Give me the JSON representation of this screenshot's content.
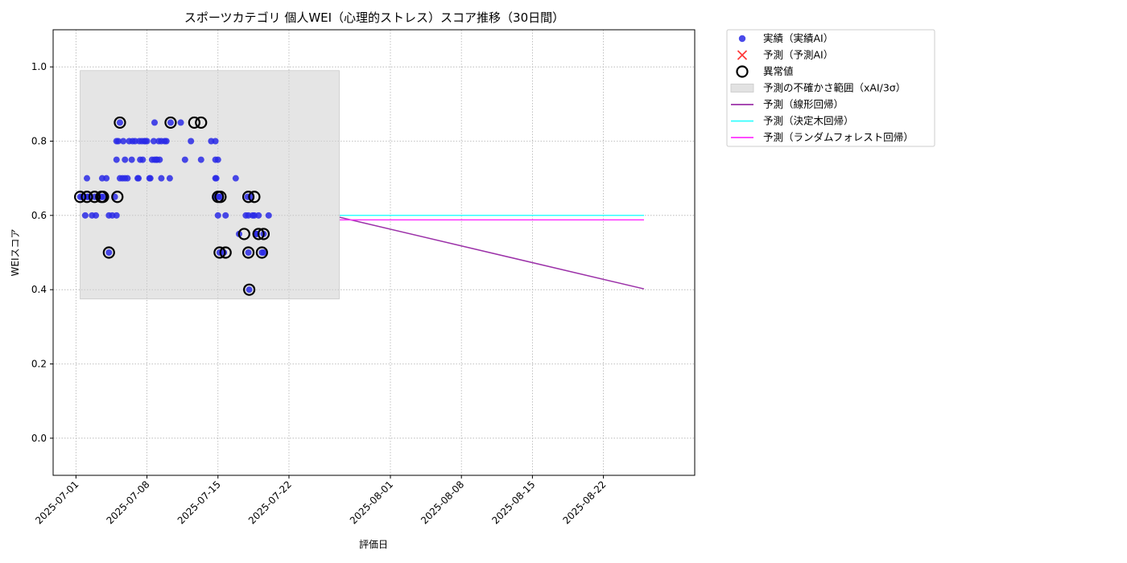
{
  "chart_data": {
    "type": "scatter",
    "title": "スポーツカテゴリ 個人WEI（心理的ストレス）スコア推移（30日間）",
    "xlabel": "評価日",
    "ylabel": "WEIスコア",
    "xlim": [
      "2025-06-28T18:00",
      "2025-08-31"
    ],
    "ylim": [
      -0.1,
      1.1
    ],
    "x_ticks": [
      "2025-07-01",
      "2025-07-08",
      "2025-07-15",
      "2025-07-22",
      "2025-08-01",
      "2025-08-08",
      "2025-08-15",
      "2025-08-22"
    ],
    "y_ticks": [
      0.0,
      0.2,
      0.4,
      0.6,
      0.8,
      1.0
    ],
    "grid": true,
    "legend_placement": "outside-top-right",
    "colors": {
      "actual": "#2a2ae6",
      "predicted_ai": "#ff3b3b",
      "anomaly_edge": "#000000",
      "uncertainty": "#cfcfcf",
      "linear": "#9b30a8",
      "decision_tree": "#33ffff",
      "random_forest": "#ff33ff"
    },
    "legend": [
      {
        "key": "actual",
        "label": "実績（実績AI）"
      },
      {
        "key": "predicted_ai",
        "label": "予測（予測AI）"
      },
      {
        "key": "anomaly",
        "label": "異常値"
      },
      {
        "key": "uncertainty",
        "label": "予測の不確かさ範囲（xAI/3σ）"
      },
      {
        "key": "linear",
        "label": "予測（線形回帰）"
      },
      {
        "key": "decision_tree",
        "label": "予測（決定木回帰）"
      },
      {
        "key": "random_forest",
        "label": "予測（ランダムフォレスト回帰）"
      }
    ],
    "uncertainty_band": {
      "x": [
        "2025-07-01T10:00",
        "2025-07-26T23:00"
      ],
      "y": [
        0.375,
        0.99
      ]
    },
    "series": [
      {
        "name": "実績（実績AI）",
        "points": [
          [
            "2025-07-01T10:00",
            0.65
          ],
          [
            "2025-07-01T14:00",
            0.65
          ],
          [
            "2025-07-01T22:00",
            0.6
          ],
          [
            "2025-07-02T02:00",
            0.65
          ],
          [
            "2025-07-02T06:00",
            0.65
          ],
          [
            "2025-07-02T02:00",
            0.7
          ],
          [
            "2025-07-02T14:00",
            0.6
          ],
          [
            "2025-07-02T20:00",
            0.65
          ],
          [
            "2025-07-02T23:00",
            0.6
          ],
          [
            "2025-07-03T06:00",
            0.65
          ],
          [
            "2025-07-03T12:00",
            0.65
          ],
          [
            "2025-07-03T14:00",
            0.7
          ],
          [
            "2025-07-03T16:00",
            0.65
          ],
          [
            "2025-07-04T00:00",
            0.7
          ],
          [
            "2025-07-04T06:00",
            0.6
          ],
          [
            "2025-07-04T06:00",
            0.5
          ],
          [
            "2025-07-04T14:00",
            0.6
          ],
          [
            "2025-07-04T20:00",
            0.65
          ],
          [
            "2025-07-05T00:00",
            0.6
          ],
          [
            "2025-07-05T00:00",
            0.75
          ],
          [
            "2025-07-05T00:00",
            0.8
          ],
          [
            "2025-07-05T04:00",
            0.8
          ],
          [
            "2025-07-05T08:00",
            0.85
          ],
          [
            "2025-07-05T08:00",
            0.7
          ],
          [
            "2025-07-05T14:00",
            0.7
          ],
          [
            "2025-07-05T16:00",
            0.8
          ],
          [
            "2025-07-05T20:00",
            0.75
          ],
          [
            "2025-07-05T20:00",
            0.7
          ],
          [
            "2025-07-06T02:00",
            0.7
          ],
          [
            "2025-07-06T06:00",
            0.8
          ],
          [
            "2025-07-06T12:00",
            0.75
          ],
          [
            "2025-07-06T14:00",
            0.8
          ],
          [
            "2025-07-06T20:00",
            0.8
          ],
          [
            "2025-07-07T02:00",
            0.7
          ],
          [
            "2025-07-07T04:00",
            0.7
          ],
          [
            "2025-07-07T06:00",
            0.8
          ],
          [
            "2025-07-07T08:00",
            0.75
          ],
          [
            "2025-07-07T12:00",
            0.8
          ],
          [
            "2025-07-07T14:00",
            0.75
          ],
          [
            "2025-07-07T18:00",
            0.8
          ],
          [
            "2025-07-07T20:00",
            0.8
          ],
          [
            "2025-07-08T00:00",
            0.8
          ],
          [
            "2025-07-08T06:00",
            0.7
          ],
          [
            "2025-07-08T08:00",
            0.7
          ],
          [
            "2025-07-08T12:00",
            0.75
          ],
          [
            "2025-07-08T16:00",
            0.8
          ],
          [
            "2025-07-08T18:00",
            0.85
          ],
          [
            "2025-07-08T18:00",
            0.75
          ],
          [
            "2025-07-08T22:00",
            0.75
          ],
          [
            "2025-07-09T00:00",
            0.75
          ],
          [
            "2025-07-09T04:00",
            0.8
          ],
          [
            "2025-07-09T06:00",
            0.75
          ],
          [
            "2025-07-09T10:00",
            0.8
          ],
          [
            "2025-07-09T10:00",
            0.7
          ],
          [
            "2025-07-09T18:00",
            0.8
          ],
          [
            "2025-07-09T22:00",
            0.8
          ],
          [
            "2025-07-10T06:00",
            0.7
          ],
          [
            "2025-07-10T08:00",
            0.85
          ],
          [
            "2025-07-11T08:00",
            0.85
          ],
          [
            "2025-07-11T18:00",
            0.75
          ],
          [
            "2025-07-12T08:00",
            0.8
          ],
          [
            "2025-07-13T08:00",
            0.75
          ],
          [
            "2025-07-14T08:00",
            0.8
          ],
          [
            "2025-07-14T18:00",
            0.8
          ],
          [
            "2025-07-14T18:00",
            0.75
          ],
          [
            "2025-07-14T18:00",
            0.7
          ],
          [
            "2025-07-14T18:00",
            0.65
          ],
          [
            "2025-07-14T20:00",
            0.7
          ],
          [
            "2025-07-15T00:00",
            0.75
          ],
          [
            "2025-07-15T00:00",
            0.6
          ],
          [
            "2025-07-15T02:00",
            0.65
          ],
          [
            "2025-07-15T04:00",
            0.5
          ],
          [
            "2025-07-15T06:00",
            0.65
          ],
          [
            "2025-07-15T14:00",
            0.5
          ],
          [
            "2025-07-15T18:00",
            0.6
          ],
          [
            "2025-07-16T18:00",
            0.7
          ],
          [
            "2025-07-17T02:00",
            0.55
          ],
          [
            "2025-07-17T18:00",
            0.6
          ],
          [
            "2025-07-17T22:00",
            0.65
          ],
          [
            "2025-07-18T00:00",
            0.6
          ],
          [
            "2025-07-18T00:00",
            0.5
          ],
          [
            "2025-07-18T02:00",
            0.4
          ],
          [
            "2025-07-18T06:00",
            0.65
          ],
          [
            "2025-07-18T10:00",
            0.6
          ],
          [
            "2025-07-18T14:00",
            0.6
          ],
          [
            "2025-07-18T18:00",
            0.55
          ],
          [
            "2025-07-18T20:00",
            0.55
          ],
          [
            "2025-07-19T00:00",
            0.6
          ],
          [
            "2025-07-19T08:00",
            0.5
          ],
          [
            "2025-07-19T12:00",
            0.5
          ],
          [
            "2025-07-19T12:00",
            0.55
          ],
          [
            "2025-07-20T00:00",
            0.6
          ]
        ]
      },
      {
        "name": "異常値",
        "points": [
          [
            "2025-07-01T10:00",
            0.65
          ],
          [
            "2025-07-02T02:00",
            0.65
          ],
          [
            "2025-07-02T20:00",
            0.65
          ],
          [
            "2025-07-03T12:00",
            0.65
          ],
          [
            "2025-07-03T16:00",
            0.65
          ],
          [
            "2025-07-04T06:00",
            0.5
          ],
          [
            "2025-07-05T02:00",
            0.65
          ],
          [
            "2025-07-05T08:00",
            0.85
          ],
          [
            "2025-07-10T08:00",
            0.85
          ],
          [
            "2025-07-12T16:00",
            0.85
          ],
          [
            "2025-07-13T08:00",
            0.85
          ],
          [
            "2025-07-15T00:00",
            0.65
          ],
          [
            "2025-07-15T04:00",
            0.5
          ],
          [
            "2025-07-15T06:00",
            0.65
          ],
          [
            "2025-07-15T18:00",
            0.5
          ],
          [
            "2025-07-17T14:00",
            0.55
          ],
          [
            "2025-07-18T00:00",
            0.5
          ],
          [
            "2025-07-18T02:00",
            0.4
          ],
          [
            "2025-07-18T00:00",
            0.65
          ],
          [
            "2025-07-18T14:00",
            0.65
          ],
          [
            "2025-07-19T00:00",
            0.55
          ],
          [
            "2025-07-19T08:00",
            0.5
          ],
          [
            "2025-07-19T12:00",
            0.55
          ]
        ]
      },
      {
        "name": "予測（線形回帰）",
        "points": [
          [
            "2025-07-27",
            0.595
          ],
          [
            "2025-08-26",
            0.402
          ]
        ]
      },
      {
        "name": "予測（決定木回帰）",
        "points": [
          [
            "2025-07-27",
            0.6
          ],
          [
            "2025-08-26",
            0.6
          ]
        ]
      },
      {
        "name": "予測（ランダムフォレスト回帰）",
        "points": [
          [
            "2025-07-27",
            0.588
          ],
          [
            "2025-08-26",
            0.588
          ]
        ]
      }
    ]
  }
}
